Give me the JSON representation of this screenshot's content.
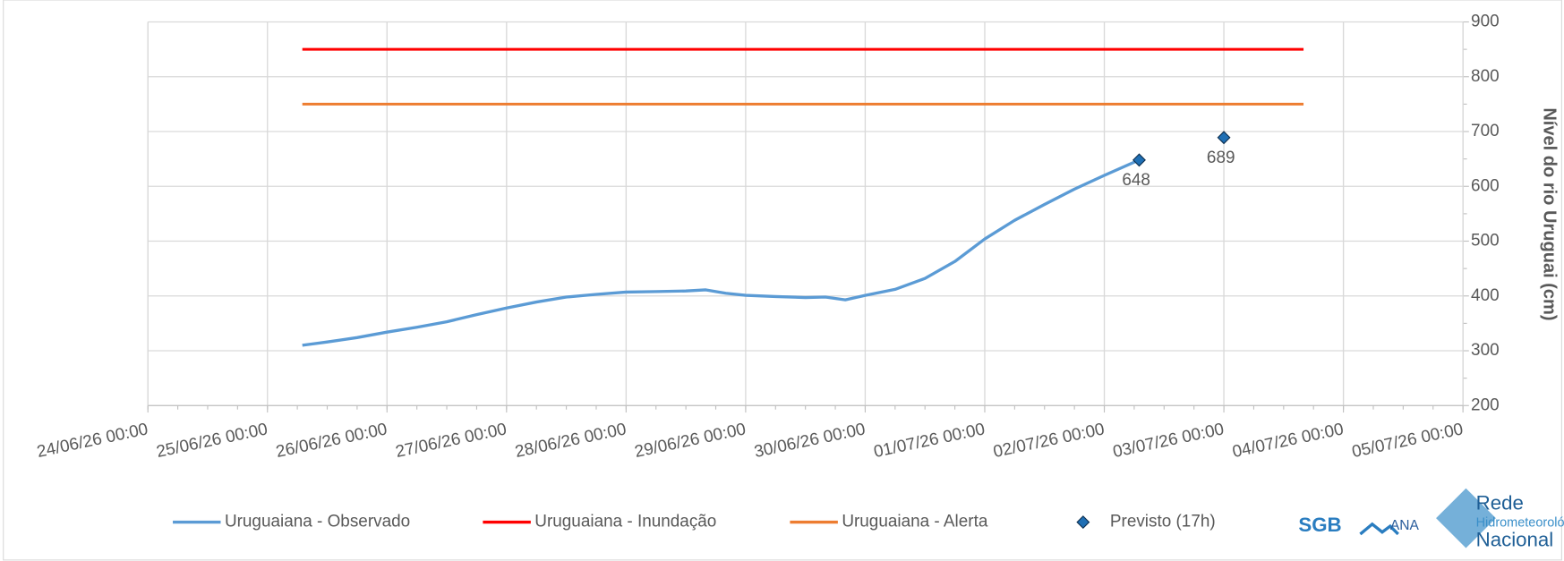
{
  "chart_data": {
    "type": "line",
    "y_label": "Nível do rio Uruguai (cm)",
    "xlim": [
      "24/06/26 00:00",
      "05/07/26 00:00"
    ],
    "xticks": [
      "24/06/26 00:00",
      "25/06/26 00:00",
      "26/06/26 00:00",
      "27/06/26 00:00",
      "28/06/26 00:00",
      "29/06/26 00:00",
      "30/06/26 00:00",
      "01/07/26 00:00",
      "02/07/26 00:00",
      "03/07/26 00:00",
      "04/07/26 00:00",
      "05/07/26 00:00"
    ],
    "ylim": [
      200,
      900
    ],
    "yticks": [
      200,
      300,
      400,
      500,
      600,
      700,
      800,
      900
    ],
    "y_axis_side": "right",
    "grid": true,
    "legend": "bottom",
    "series": [
      {
        "name": "Uruguaiana - Observado",
        "color": "#5b9bd5",
        "mark": "line",
        "x": [
          "25/06/26 07:00",
          "25/06/26 12:00",
          "25/06/26 18:00",
          "26/06/26 00:00",
          "26/06/26 06:00",
          "26/06/26 12:00",
          "26/06/26 18:00",
          "27/06/26 00:00",
          "27/06/26 06:00",
          "27/06/26 12:00",
          "27/06/26 18:00",
          "28/06/26 00:00",
          "28/06/26 06:00",
          "28/06/26 12:00",
          "28/06/26 16:00",
          "28/06/26 20:00",
          "29/06/26 00:00",
          "29/06/26 06:00",
          "29/06/26 12:00",
          "29/06/26 16:00",
          "29/06/26 20:00",
          "30/06/26 00:00",
          "30/06/26 06:00",
          "30/06/26 12:00",
          "30/06/26 18:00",
          "01/07/26 00:00",
          "01/07/26 06:00",
          "01/07/26 12:00",
          "01/07/26 18:00",
          "02/07/26 00:00",
          "02/07/26 07:00"
        ],
        "values": [
          310,
          316,
          324,
          334,
          343,
          353,
          366,
          378,
          389,
          398,
          403,
          407,
          408,
          409,
          411,
          405,
          401,
          399,
          397,
          398,
          393,
          401,
          412,
          432,
          463,
          504,
          538,
          567,
          595,
          620,
          648
        ]
      },
      {
        "name": "Uruguaiana - Inundação",
        "color": "#ff0000",
        "mark": "line",
        "x": [
          "25/06/26 07:00",
          "03/07/26 16:00"
        ],
        "values": [
          850,
          850
        ]
      },
      {
        "name": "Uruguaiana - Alerta",
        "color": "#ed7d31",
        "mark": "line",
        "x": [
          "25/06/26 07:00",
          "03/07/26 16:00"
        ],
        "values": [
          750,
          750
        ]
      },
      {
        "name": "Previsto (17h)",
        "color": "#1f6fb4",
        "mark": "diamond",
        "x": [
          "02/07/26 07:00",
          "03/07/26 00:00"
        ],
        "values": [
          648,
          689
        ]
      }
    ]
  },
  "logos": {
    "sgb": "SGB",
    "ana": "ANA",
    "rede": "Rede",
    "hidro": "Hidrometeorológica",
    "nacional": "Nacional"
  }
}
